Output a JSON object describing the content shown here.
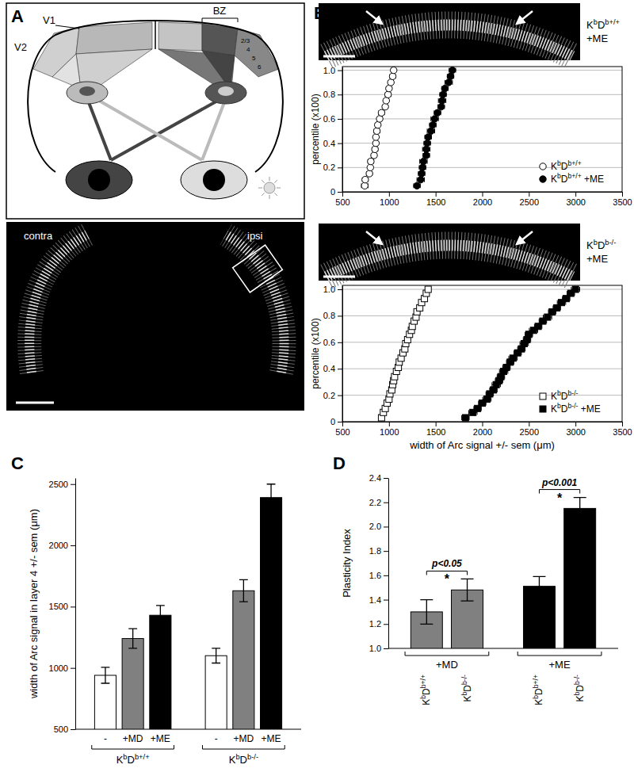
{
  "diagram": {
    "title": "A",
    "labels": [
      "V2",
      "V1",
      "BZ"
    ],
    "layers": [
      "2/3",
      "4",
      "5",
      "6"
    ],
    "image_labels": [
      "contra",
      "ipsi"
    ]
  },
  "chart_data": [
    {
      "type": "scatter",
      "title": "B",
      "annotations": [
        "KbDb+/+",
        "+ME"
      ],
      "ylabel": "percentile (x100)",
      "xlim": [
        500,
        3500
      ],
      "xticks": [
        500,
        1000,
        1500,
        2000,
        2500,
        3000,
        3500
      ],
      "ylim": [
        0,
        1.03
      ],
      "yticks": [
        0,
        0.2,
        0.4,
        0.6,
        0.8,
        {
          "value": 1,
          "label": "1.0"
        }
      ],
      "grid": true,
      "legend": "lower right",
      "series": [
        {
          "name": "KbDb+/+",
          "color": "#ffffff",
          "marker": "circle",
          "x": [
            740,
            745,
            790,
            800,
            805,
            840,
            850,
            860,
            860,
            870,
            880,
            900,
            920,
            960,
            970,
            990,
            1000,
            1020,
            1040,
            1050
          ],
          "values": [
            0.05,
            0.1,
            0.15,
            0.2,
            0.25,
            0.3,
            0.35,
            0.4,
            0.45,
            0.5,
            0.55,
            0.6,
            0.65,
            0.7,
            0.75,
            0.8,
            0.85,
            0.9,
            0.95,
            1.0
          ],
          "x_errors": [
            35,
            30,
            30,
            25,
            30,
            25,
            30,
            25,
            25,
            30,
            25,
            25,
            30,
            25,
            25,
            30,
            25,
            25,
            30,
            25
          ]
        },
        {
          "name": "KbDb+/+ +ME",
          "color": "#000000",
          "marker": "circle",
          "x": [
            1300,
            1340,
            1350,
            1360,
            1370,
            1400,
            1400,
            1410,
            1420,
            1450,
            1470,
            1490,
            1520,
            1560,
            1570,
            1580,
            1600,
            1640,
            1660,
            1680
          ],
          "values": [
            0.05,
            0.1,
            0.15,
            0.2,
            0.25,
            0.3,
            0.35,
            0.4,
            0.45,
            0.5,
            0.55,
            0.6,
            0.65,
            0.7,
            0.75,
            0.8,
            0.85,
            0.9,
            0.95,
            1.0
          ],
          "x_errors": [
            35,
            40,
            35,
            35,
            40,
            35,
            40,
            35,
            35,
            40,
            35,
            40,
            35,
            35,
            40,
            35,
            35,
            40,
            35,
            35
          ]
        }
      ]
    },
    {
      "type": "scatter",
      "annotations": [
        "KbDb-/-",
        "+ME"
      ],
      "xlabel": "width of Arc signal +/- sem (μm)",
      "ylabel": "percentile (x100)",
      "xlim": [
        500,
        3500
      ],
      "xticks": [
        500,
        1000,
        1500,
        2000,
        2500,
        3000,
        3500
      ],
      "ylim": [
        0,
        1.03
      ],
      "yticks": [
        0,
        0.2,
        0.4,
        0.6,
        0.8,
        {
          "value": 1,
          "label": "1.0"
        }
      ],
      "grid": true,
      "legend": "lower right",
      "series": [
        {
          "name": "KbDb-/-",
          "color": "#ffffff",
          "marker": "square",
          "x": [
            920,
            940,
            960,
            980,
            1000,
            1010,
            1030,
            1040,
            1050,
            1060,
            1080,
            1100,
            1110,
            1130,
            1150,
            1170,
            1180,
            1200,
            1220,
            1240,
            1250,
            1270,
            1290,
            1300,
            1330,
            1350,
            1380,
            1400,
            1420
          ],
          "values": [
            0.03,
            0.07,
            0.1,
            0.14,
            0.17,
            0.21,
            0.24,
            0.28,
            0.31,
            0.34,
            0.38,
            0.41,
            0.45,
            0.48,
            0.52,
            0.55,
            0.59,
            0.62,
            0.66,
            0.69,
            0.72,
            0.76,
            0.79,
            0.83,
            0.86,
            0.9,
            0.93,
            0.97,
            1.0
          ],
          "x_errors": [
            20,
            20,
            25,
            20,
            20,
            25,
            20,
            20,
            20,
            25,
            20,
            20,
            25,
            20,
            20,
            20,
            25,
            20,
            20,
            25,
            20,
            20,
            20,
            25,
            20,
            20,
            25,
            20,
            20
          ]
        },
        {
          "name": "KbDb-/- +ME",
          "color": "#000000",
          "marker": "square",
          "x": [
            1820,
            1900,
            1950,
            2000,
            2050,
            2080,
            2120,
            2150,
            2180,
            2200,
            2230,
            2260,
            2300,
            2330,
            2380,
            2420,
            2450,
            2480,
            2500,
            2550,
            2600,
            2650,
            2700,
            2750,
            2800,
            2850,
            2900,
            2950,
            3000
          ],
          "values": [
            0.03,
            0.07,
            0.1,
            0.14,
            0.17,
            0.21,
            0.24,
            0.28,
            0.31,
            0.34,
            0.38,
            0.41,
            0.45,
            0.48,
            0.52,
            0.55,
            0.59,
            0.62,
            0.66,
            0.69,
            0.72,
            0.76,
            0.79,
            0.83,
            0.86,
            0.9,
            0.93,
            0.97,
            1.0
          ],
          "x_errors": [
            40,
            45,
            40,
            40,
            45,
            40,
            40,
            45,
            40,
            40,
            45,
            40,
            40,
            45,
            40,
            40,
            45,
            40,
            40,
            45,
            40,
            40,
            45,
            40,
            40,
            45,
            40,
            40,
            45
          ]
        }
      ]
    },
    {
      "type": "bar",
      "title": "C",
      "ylabel": "width of Arc signal in layer 4 +/- sem (μm)",
      "categories": [
        "KbDb+/+",
        "KbDb-/-"
      ],
      "ylim": [
        500,
        2550
      ],
      "yticks": [
        500,
        1000,
        1500,
        2000,
        2500
      ],
      "series": [
        {
          "name": "-",
          "color": "#ffffff",
          "values": [
            940,
            1100
          ],
          "errors": [
            65,
            60
          ]
        },
        {
          "name": "+MD",
          "color": "#808080",
          "values": [
            1240,
            1630
          ],
          "errors": [
            80,
            90
          ]
        },
        {
          "name": "+ME",
          "color": "#000000",
          "values": [
            1430,
            2390
          ],
          "errors": [
            80,
            110
          ]
        }
      ]
    },
    {
      "type": "bar",
      "title": "D",
      "ylabel": "Plasticity Index",
      "annotations": [
        "p<0.05",
        "*",
        "p<0.001",
        "*"
      ],
      "categories": [
        "+MD",
        "+ME"
      ],
      "ylim": [
        1.0,
        2.4
      ],
      "yticks": [
        {
          "value": 1.0,
          "label": "1.0"
        },
        1.2,
        1.4,
        1.6,
        1.8,
        {
          "value": 2.0,
          "label": "2.0"
        },
        2.2,
        2.4
      ],
      "series": [
        {
          "name": "KbDb+/+",
          "colors": [
            "#808080",
            "#000000"
          ],
          "values": [
            1.3,
            1.51
          ],
          "errors": [
            0.1,
            0.08
          ]
        },
        {
          "name": "KbDb-/-",
          "colors": [
            "#808080",
            "#000000"
          ],
          "values": [
            1.48,
            2.15
          ],
          "errors": [
            0.09,
            0.09
          ]
        }
      ]
    }
  ]
}
